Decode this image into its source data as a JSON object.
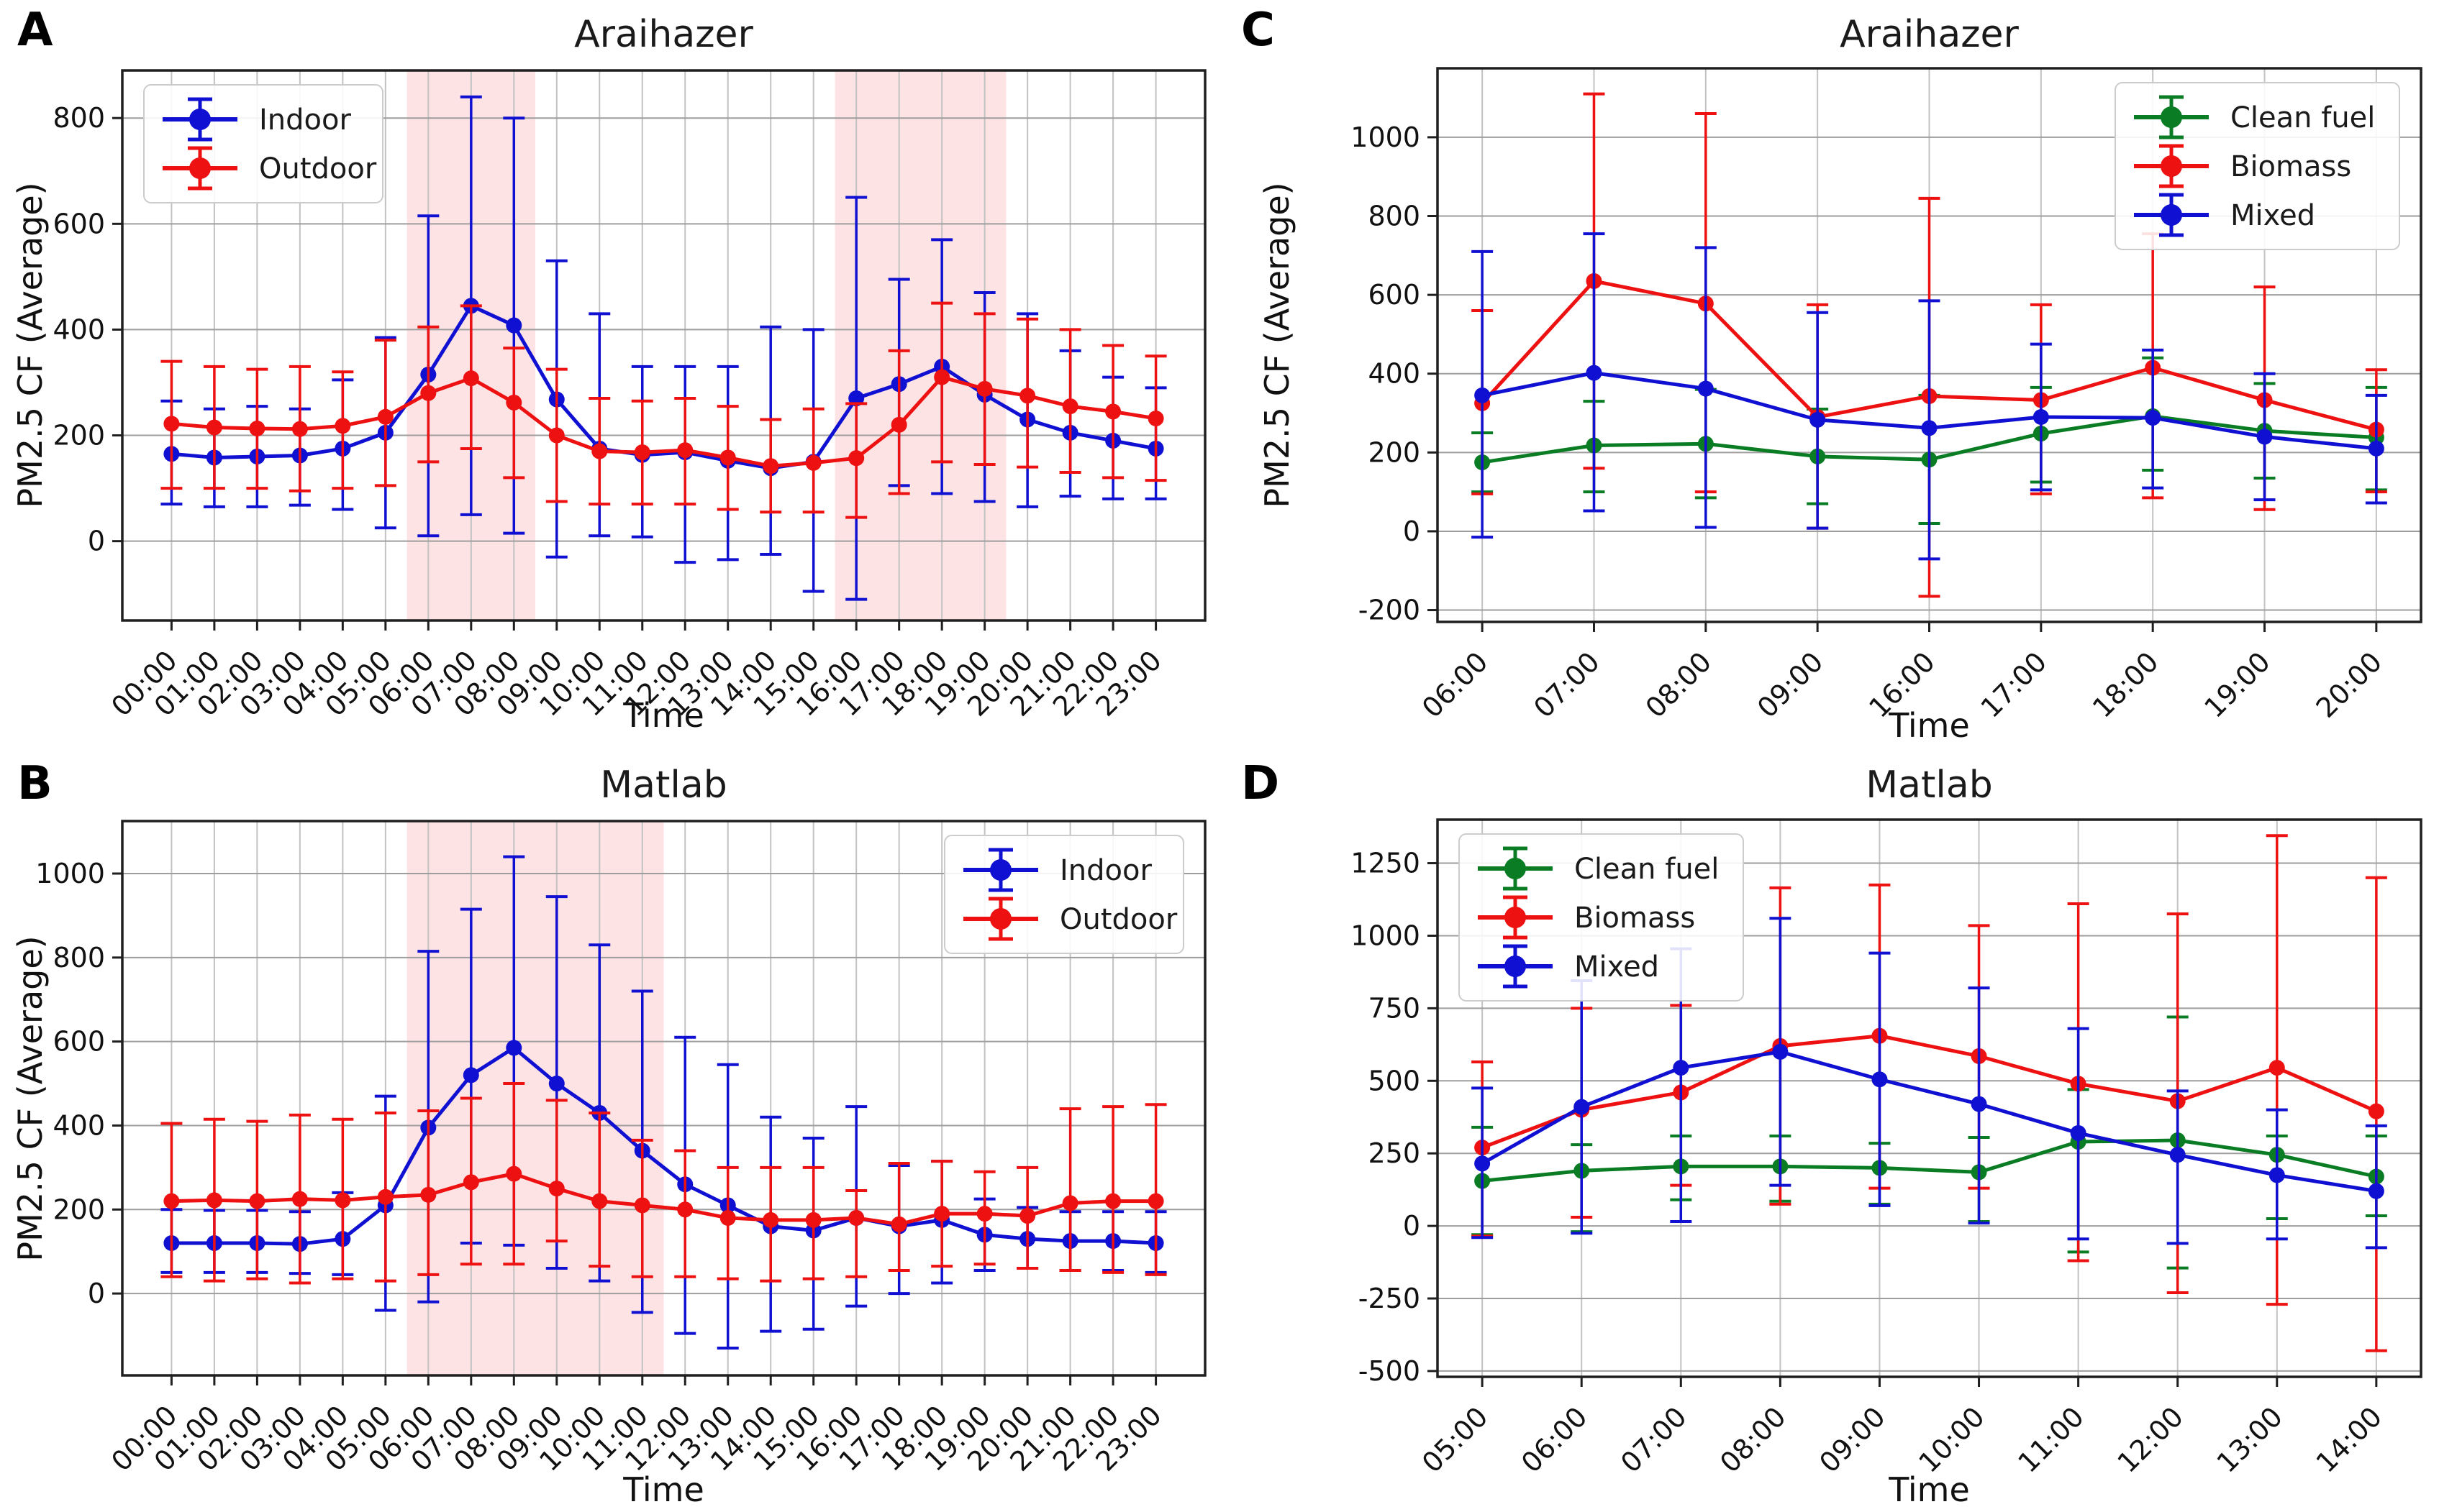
{
  "figure": {
    "background": "#ffffff"
  },
  "colors": {
    "band": "rgba(242,80,90,0.16)",
    "grid_h": "#9e9e9e",
    "grid_v": "#c2c2c2",
    "axis": "#1f1f1f",
    "blue": "#1010d2",
    "red": "#ee1111",
    "green": "#0a7d24"
  },
  "chart_data": [
    {
      "type": "line",
      "letter": "A",
      "title": "Araihazer",
      "xlabel": "Time",
      "ylabel": "PM2.5 CF (Average)",
      "legend_position": "top-left",
      "grid": true,
      "ylim": [
        -150,
        890
      ],
      "yticks": [
        0,
        200,
        400,
        600,
        800
      ],
      "shaded_bands": [
        {
          "from": 5.5,
          "to": 8.5
        },
        {
          "from": 15.5,
          "to": 19.5
        }
      ],
      "categories": [
        "00:00",
        "01:00",
        "02:00",
        "03:00",
        "04:00",
        "05:00",
        "06:00",
        "07:00",
        "08:00",
        "09:00",
        "10:00",
        "11:00",
        "12:00",
        "13:00",
        "14:00",
        "15:00",
        "16:00",
        "17:00",
        "18:00",
        "19:00",
        "20:00",
        "21:00",
        "22:00",
        "23:00"
      ],
      "series": [
        {
          "name": "Indoor",
          "color": "#1010d2",
          "values": [
            165,
            158,
            160,
            162,
            175,
            205,
            315,
            445,
            408,
            268,
            175,
            163,
            168,
            152,
            138,
            150,
            270,
            297,
            330,
            277,
            230,
            205,
            190,
            175
          ],
          "err_low": [
            70,
            65,
            65,
            68,
            60,
            25,
            10,
            50,
            15,
            -30,
            10,
            8,
            -40,
            -35,
            -25,
            -95,
            -110,
            105,
            90,
            75,
            65,
            85,
            80,
            80
          ],
          "err_high": [
            265,
            250,
            255,
            250,
            305,
            385,
            615,
            840,
            800,
            530,
            430,
            330,
            330,
            330,
            405,
            400,
            650,
            495,
            570,
            470,
            430,
            360,
            310,
            290
          ]
        },
        {
          "name": "Outdoor",
          "color": "#ee1111",
          "values": [
            222,
            215,
            213,
            212,
            218,
            235,
            280,
            308,
            262,
            200,
            170,
            168,
            172,
            158,
            142,
            148,
            157,
            220,
            310,
            288,
            275,
            255,
            245,
            232
          ],
          "err_low": [
            100,
            100,
            100,
            95,
            100,
            105,
            150,
            175,
            120,
            75,
            70,
            70,
            70,
            60,
            55,
            55,
            45,
            90,
            150,
            145,
            140,
            130,
            120,
            115
          ],
          "err_high": [
            340,
            330,
            325,
            330,
            320,
            380,
            405,
            445,
            365,
            325,
            270,
            265,
            270,
            255,
            230,
            250,
            260,
            360,
            450,
            430,
            420,
            400,
            370,
            350
          ]
        }
      ]
    },
    {
      "type": "line",
      "letter": "B",
      "title": "Matlab",
      "xlabel": "Time",
      "ylabel": "PM2.5 CF (Average)",
      "legend_position": "top-right",
      "grid": true,
      "ylim": [
        -195,
        1125
      ],
      "yticks": [
        0,
        200,
        400,
        600,
        800,
        1000
      ],
      "shaded_bands": [
        {
          "from": 5.5,
          "to": 11.5
        }
      ],
      "categories": [
        "00:00",
        "01:00",
        "02:00",
        "03:00",
        "04:00",
        "05:00",
        "06:00",
        "07:00",
        "08:00",
        "09:00",
        "10:00",
        "11:00",
        "12:00",
        "13:00",
        "14:00",
        "15:00",
        "16:00",
        "17:00",
        "18:00",
        "19:00",
        "20:00",
        "21:00",
        "22:00",
        "23:00"
      ],
      "series": [
        {
          "name": "Indoor",
          "color": "#1010d2",
          "values": [
            120,
            120,
            120,
            118,
            130,
            210,
            395,
            520,
            585,
            500,
            430,
            340,
            260,
            210,
            160,
            150,
            180,
            160,
            175,
            140,
            130,
            125,
            125,
            120
          ],
          "err_low": [
            50,
            50,
            50,
            48,
            45,
            -40,
            -20,
            120,
            115,
            60,
            30,
            -45,
            -95,
            -130,
            -90,
            -85,
            -30,
            0,
            25,
            55,
            60,
            55,
            55,
            50
          ],
          "err_high": [
            200,
            198,
            198,
            195,
            240,
            470,
            815,
            915,
            1040,
            945,
            830,
            720,
            610,
            545,
            420,
            370,
            445,
            305,
            315,
            225,
            205,
            195,
            195,
            195
          ]
        },
        {
          "name": "Outdoor",
          "color": "#ee1111",
          "values": [
            220,
            222,
            220,
            225,
            222,
            230,
            235,
            265,
            285,
            250,
            220,
            210,
            200,
            180,
            175,
            175,
            180,
            165,
            190,
            190,
            185,
            215,
            220,
            220
          ],
          "err_low": [
            40,
            30,
            35,
            25,
            35,
            30,
            45,
            70,
            70,
            125,
            65,
            40,
            40,
            35,
            30,
            35,
            40,
            55,
            65,
            70,
            60,
            55,
            50,
            45
          ],
          "err_high": [
            405,
            415,
            410,
            425,
            415,
            430,
            435,
            465,
            500,
            460,
            430,
            365,
            340,
            300,
            300,
            300,
            245,
            310,
            315,
            290,
            300,
            440,
            445,
            450
          ]
        }
      ]
    },
    {
      "type": "line",
      "letter": "C",
      "title": "Araihazer",
      "xlabel": "Time",
      "ylabel": "PM2.5 CF (Average)",
      "legend_position": "top-right",
      "grid": true,
      "ylim": [
        -230,
        1175
      ],
      "yticks": [
        -200,
        0,
        200,
        400,
        600,
        800,
        1000
      ],
      "shaded_bands": [],
      "categories": [
        "06:00",
        "07:00",
        "08:00",
        "09:00",
        "16:00",
        "17:00",
        "18:00",
        "19:00",
        "20:00"
      ],
      "series": [
        {
          "name": "Clean fuel",
          "color": "#0a7d24",
          "values": [
            175,
            218,
            222,
            190,
            182,
            248,
            292,
            255,
            238
          ],
          "err_low": [
            100,
            100,
            85,
            70,
            20,
            125,
            155,
            135,
            105
          ],
          "err_high": [
            250,
            330,
            360,
            310,
            345,
            365,
            440,
            375,
            365
          ]
        },
        {
          "name": "Biomass",
          "color": "#ee1111",
          "values": [
            325,
            635,
            578,
            290,
            343,
            333,
            415,
            333,
            258
          ],
          "err_low": [
            95,
            160,
            100,
            8,
            -165,
            95,
            85,
            55,
            100
          ],
          "err_high": [
            560,
            1110,
            1060,
            575,
            845,
            575,
            755,
            620,
            410
          ]
        },
        {
          "name": "Mixed",
          "color": "#1010d2",
          "values": [
            345,
            402,
            362,
            283,
            262,
            290,
            288,
            240,
            210
          ],
          "err_low": [
            -15,
            52,
            10,
            8,
            -70,
            105,
            110,
            80,
            72
          ],
          "err_high": [
            710,
            755,
            720,
            555,
            585,
            475,
            460,
            400,
            345
          ]
        }
      ]
    },
    {
      "type": "line",
      "letter": "D",
      "title": "Matlab",
      "xlabel": "Time",
      "ylabel": "",
      "legend_position": "top-left",
      "grid": true,
      "ylim": [
        -520,
        1400
      ],
      "yticks": [
        -500,
        -250,
        0,
        250,
        500,
        750,
        1000,
        1250
      ],
      "shaded_bands": [],
      "categories": [
        "05:00",
        "06:00",
        "07:00",
        "08:00",
        "09:00",
        "10:00",
        "11:00",
        "12:00",
        "13:00",
        "14:00"
      ],
      "series": [
        {
          "name": "Clean fuel",
          "color": "#0a7d24",
          "values": [
            155,
            190,
            205,
            205,
            200,
            185,
            290,
            295,
            245,
            170
          ],
          "err_low": [
            -30,
            -20,
            90,
            85,
            75,
            15,
            -90,
            -145,
            25,
            35
          ],
          "err_high": [
            340,
            280,
            310,
            310,
            285,
            305,
            470,
            720,
            310,
            310
          ]
        },
        {
          "name": "Biomass",
          "color": "#ee1111",
          "values": [
            270,
            400,
            460,
            620,
            655,
            585,
            490,
            430,
            545,
            395
          ],
          "err_low": [
            -35,
            30,
            140,
            75,
            130,
            130,
            -120,
            -230,
            -270,
            -430
          ],
          "err_high": [
            565,
            750,
            760,
            1165,
            1175,
            1035,
            1110,
            1075,
            1345,
            1200
          ]
        },
        {
          "name": "Mixed",
          "color": "#1010d2",
          "values": [
            215,
            410,
            545,
            600,
            505,
            420,
            320,
            245,
            175,
            120
          ],
          "err_low": [
            -40,
            -25,
            15,
            140,
            70,
            10,
            -45,
            -60,
            -45,
            -75
          ],
          "err_high": [
            475,
            845,
            955,
            1060,
            940,
            820,
            680,
            465,
            400,
            345
          ]
        }
      ]
    }
  ]
}
